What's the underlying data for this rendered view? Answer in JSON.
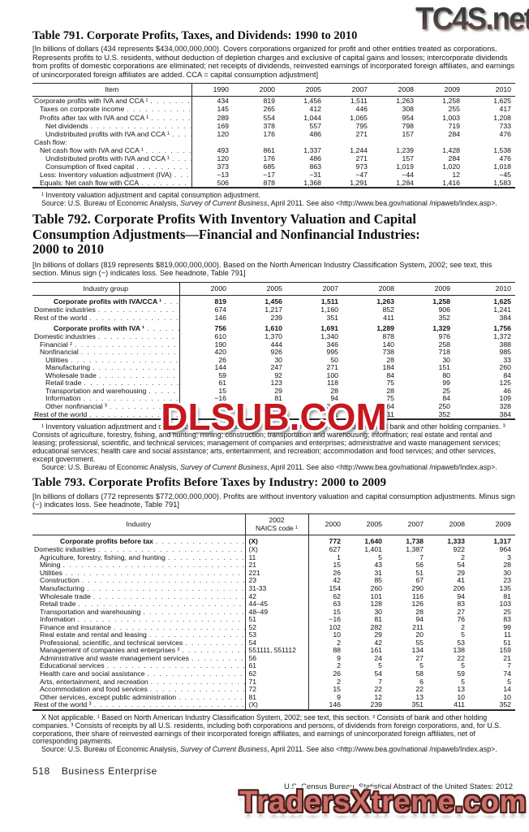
{
  "page": {
    "watermark_top": "TC4S.net",
    "watermark_middle": "DLSUB.COM",
    "watermark_bottom": "TradersXtreme.com",
    "footer_page_number": "518",
    "footer_section": "Business Enterprise",
    "footer_imprint": "U.S. Census Bureau, Statistical Abstract of the United States: 2012"
  },
  "colors": {
    "dlsub-red": "#c5191f",
    "traders-fill": "#cc6d68",
    "traders-outline": "#47201c",
    "tc4s-dark": "#3d3d3f",
    "tc4s-rust": "#96604f"
  },
  "table791": {
    "title": "Table 791. Corporate Profits, Taxes, and Dividends: 1990 to 2010",
    "headnote": "[In billions of dollars (434 represents $434,000,000,000). Covers corporations organized for profit and other entities treated as corporations. Represents profits to U.S. residents, without deduction of depletion charges and exclusive of capital gains and losses; intercorporate dividends from profits of domestic corporations are eliminated; net receipts of dividends, reinvested earnings of incorporated foreign affiliates, and earnings of unincorporated foreign affiliates are added. CCA = capital consumption adjustment]",
    "columns": [
      "Item",
      "1990",
      "2000",
      "2005",
      "2007",
      "2008",
      "2009",
      "2010"
    ],
    "rows": [
      {
        "label": "Corporate profits with IVA and CCA ¹",
        "indent": 0,
        "values": [
          "434",
          "819",
          "1,456",
          "1,511",
          "1,263",
          "1,258",
          "1,625"
        ]
      },
      {
        "label": "Taxes on corporate income",
        "indent": 1,
        "values": [
          "145",
          "265",
          "412",
          "446",
          "308",
          "255",
          "417"
        ]
      },
      {
        "label": "Profits after tax with IVA and CCA ¹",
        "indent": 1,
        "values": [
          "289",
          "554",
          "1,044",
          "1,065",
          "954",
          "1,003",
          "1,208"
        ]
      },
      {
        "label": "Net dividends",
        "indent": 2,
        "values": [
          "169",
          "378",
          "557",
          "795",
          "798",
          "719",
          "733"
        ]
      },
      {
        "label": "Undistributed profits with IVA and CCA ¹",
        "indent": 2,
        "values": [
          "120",
          "176",
          "486",
          "271",
          "157",
          "284",
          "476"
        ]
      },
      {
        "label": "Cash flow:",
        "indent": 0,
        "leaders": false,
        "values": []
      },
      {
        "label": "Net cash flow with IVA and CCA ¹",
        "indent": 1,
        "values": [
          "493",
          "861",
          "1,337",
          "1,244",
          "1,239",
          "1,428",
          "1,538"
        ]
      },
      {
        "label": "Undistributed profits with IVA and CCA ¹",
        "indent": 2,
        "values": [
          "120",
          "176",
          "486",
          "271",
          "157",
          "284",
          "476"
        ]
      },
      {
        "label": "Consumption of fixed capital",
        "indent": 2,
        "values": [
          "373",
          "685",
          "863",
          "973",
          "1,019",
          "1,020",
          "1,018"
        ]
      },
      {
        "label": "Less: Inventory valuation adjustment (IVA)",
        "indent": 1,
        "values": [
          "−13",
          "−17",
          "−31",
          "−47",
          "−44",
          "12",
          "−45"
        ]
      },
      {
        "label": "Equals: Net cash flow with CCA",
        "indent": 1,
        "values": [
          "506",
          "878",
          "1,368",
          "1,291",
          "1,284",
          "1,416",
          "1,583"
        ]
      }
    ],
    "footnote": "¹ Inventory valuation adjustment and capital consumption adjustment.",
    "source": {
      "pre": "Source: U.S. Bureau of Economic Analysis, ",
      "journal": "Survey of Current Business",
      "post": ", April 2011. See also <http://www.bea.gov/national /nipaweb/Index.asp>."
    }
  },
  "table792": {
    "title_line1": "Table 792. Corporate Profits With Inventory Valuation and Capital",
    "title_line2": "Consumption Adjustments—Financial and Nonfinancial Industries:",
    "title_line3": "2000 to 2010",
    "headnote": "[In billions of dollars (819 represents $819,000,000,000). Based on the North American Industry Classification System, 2002; see text, this section. Minus sign (−) indicates loss. See headnote, Table 791]",
    "columns": [
      "Industry group",
      "2000",
      "2005",
      "2007",
      "2008",
      "2009",
      "2010"
    ],
    "rows": [
      {
        "label": "Corporate profits with IVA/CCA ¹",
        "indent": 3,
        "bold": true,
        "values": [
          "819",
          "1,456",
          "1,511",
          "1,263",
          "1,258",
          "1,625"
        ]
      },
      {
        "label": "Domestic industries",
        "indent": 0,
        "values": [
          "674",
          "1,217",
          "1,160",
          "852",
          "906",
          "1,241"
        ]
      },
      {
        "label": "Rest of the world",
        "indent": 0,
        "values": [
          "146",
          "239",
          "351",
          "411",
          "352",
          "384"
        ]
      },
      {
        "label": "Corporate profits with IVA ¹",
        "indent": 3,
        "bold": true,
        "values": [
          "756",
          "1,610",
          "1,691",
          "1,289",
          "1,329",
          "1,756"
        ]
      },
      {
        "label": "Domestic industries",
        "indent": 0,
        "values": [
          "610",
          "1,370",
          "1,340",
          "878",
          "976",
          "1,372"
        ]
      },
      {
        "label": "Financial ²",
        "indent": 1,
        "values": [
          "190",
          "444",
          "346",
          "140",
          "258",
          "388"
        ]
      },
      {
        "label": "Nonfinancial",
        "indent": 1,
        "values": [
          "420",
          "926",
          "995",
          "738",
          "718",
          "985"
        ]
      },
      {
        "label": "Utilities",
        "indent": 2,
        "values": [
          "26",
          "30",
          "50",
          "28",
          "30",
          "33"
        ]
      },
      {
        "label": "Manufacturing",
        "indent": 2,
        "values": [
          "144",
          "247",
          "271",
          "184",
          "151",
          "260"
        ]
      },
      {
        "label": "Wholesale trade",
        "indent": 2,
        "values": [
          "59",
          "92",
          "100",
          "84",
          "80",
          "84"
        ]
      },
      {
        "label": "Retail trade",
        "indent": 2,
        "values": [
          "61",
          "123",
          "118",
          "75",
          "99",
          "125"
        ]
      },
      {
        "label": "Transportation and warehousing",
        "indent": 2,
        "values": [
          "15",
          "29",
          "28",
          "28",
          "25",
          "46"
        ]
      },
      {
        "label": "Information",
        "indent": 2,
        "values": [
          "−16",
          "81",
          "94",
          "75",
          "84",
          "109"
        ]
      },
      {
        "label": "Other nonfinancial ³",
        "indent": 2,
        "values": [
          "132",
          "324",
          "334",
          "264",
          "250",
          "328"
        ]
      },
      {
        "label": "Rest of the world",
        "indent": 0,
        "values": [
          "146",
          "239",
          "351",
          "411",
          "352",
          "384"
        ]
      }
    ],
    "footnote": "¹ Inventory valuation adjustment and capital consumption adjustment. ² Consists of finance and insurance and bank and other holding companies. ³ Consists of agriculture, forestry, fishing, and hunting; mining; construction; transportation and warehousing; information; real estate and rental and leasing; professional, scientific, and technical services; management of companies and enterprises; administrative and waste management services; educational services; health care and social assistance; arts, entertainment, and recreation; accommodation and food services; and other services, except government.",
    "source": {
      "pre": "Source: U.S. Bureau of Economic Analysis, ",
      "journal": "Survey of Current Business",
      "post": ", April 2011. See also <http://www.bea.gov/national /nipaweb/Index.asp>."
    }
  },
  "table793": {
    "title": "Table 793. Corporate Profits Before Taxes by Industry: 2000 to 2009",
    "headnote": "[In billions of dollars (772 represents $772,000,000,000). Profits are without inventory valuation and capital consumption adjustments. Minus sign (−) indicates loss. See headnote, Table 791]",
    "columns": [
      "Industry",
      "2002\nNAICS code ¹",
      "2000",
      "2005",
      "2007",
      "2008",
      "2009"
    ],
    "rows": [
      {
        "label": "Corporate profits before tax",
        "indent": 4,
        "bold": true,
        "naics": "(X)",
        "values": [
          "772",
          "1,640",
          "1,738",
          "1,333",
          "1,317"
        ]
      },
      {
        "label": "Domestic industries",
        "indent": 0,
        "naics": "(X)",
        "values": [
          "627",
          "1,401",
          "1,387",
          "922",
          "964"
        ]
      },
      {
        "label": "Agriculture, forestry, fishing, and hunting",
        "indent": 1,
        "naics": "11",
        "values": [
          "1",
          "5",
          "7",
          "2",
          "3"
        ]
      },
      {
        "label": "Mining",
        "indent": 1,
        "naics": "21",
        "values": [
          "15",
          "43",
          "56",
          "54",
          "28"
        ]
      },
      {
        "label": "Utilities",
        "indent": 1,
        "naics": "221",
        "values": [
          "26",
          "31",
          "51",
          "29",
          "30"
        ]
      },
      {
        "label": "Construction",
        "indent": 1,
        "naics": "23",
        "values": [
          "42",
          "85",
          "67",
          "41",
          "23"
        ]
      },
      {
        "label": "Manufacturing",
        "indent": 1,
        "naics": "31-33",
        "values": [
          "154",
          "260",
          "290",
          "206",
          "135"
        ]
      },
      {
        "label": "Wholesale trade",
        "indent": 1,
        "naics": "42",
        "values": [
          "62",
          "101",
          "116",
          "94",
          "81"
        ]
      },
      {
        "label": "Retail trade",
        "indent": 1,
        "naics": "44–45",
        "values": [
          "63",
          "128",
          "126",
          "83",
          "103"
        ]
      },
      {
        "label": "Transportation and warehousing",
        "indent": 1,
        "naics": "48–49",
        "values": [
          "15",
          "30",
          "28",
          "27",
          "25"
        ]
      },
      {
        "label": "Information",
        "indent": 1,
        "naics": "51",
        "values": [
          "−16",
          "81",
          "94",
          "76",
          "83"
        ]
      },
      {
        "label": "Finance and insurance",
        "indent": 1,
        "naics": "52",
        "values": [
          "102",
          "282",
          "211",
          "2",
          "99"
        ]
      },
      {
        "label": "Real estate and rental and leasing",
        "indent": 1,
        "naics": "53",
        "values": [
          "10",
          "29",
          "20",
          "5",
          "11"
        ]
      },
      {
        "label": "Professional, scientific, and technical services",
        "indent": 1,
        "naics": "54",
        "values": [
          "2",
          "42",
          "55",
          "53",
          "51"
        ]
      },
      {
        "label": "Management of companies and enterprises ²",
        "indent": 1,
        "naics": "551111, 551112",
        "values": [
          "88",
          "161",
          "134",
          "138",
          "159"
        ]
      },
      {
        "label": "Administrative and waste management services",
        "indent": 1,
        "naics": "56",
        "values": [
          "9",
          "24",
          "27",
          "22",
          "21"
        ]
      },
      {
        "label": "Educational services",
        "indent": 1,
        "naics": "61",
        "values": [
          "2",
          "5",
          "5",
          "5",
          "7"
        ]
      },
      {
        "label": "Health care and social assistance",
        "indent": 1,
        "naics": "62",
        "values": [
          "26",
          "54",
          "58",
          "59",
          "74"
        ]
      },
      {
        "label": "Arts, entertainment, and recreation",
        "indent": 1,
        "naics": "71",
        "values": [
          "2",
          "7",
          "6",
          "5",
          "5"
        ]
      },
      {
        "label": "Accommodation and food services",
        "indent": 1,
        "naics": "72",
        "values": [
          "15",
          "22",
          "22",
          "13",
          "14"
        ]
      },
      {
        "label": "Other services, except public administration",
        "indent": 1,
        "naics": "81",
        "values": [
          "9",
          "12",
          "13",
          "10",
          "10"
        ]
      },
      {
        "label": "Rest of the world ³",
        "indent": 0,
        "naics": "(X)",
        "values": [
          "146",
          "239",
          "351",
          "411",
          "352"
        ]
      }
    ],
    "footnote": "X Not applicable. ¹ Based on North American Industry Classification System, 2002; see text, this section. ² Consists of bank and other holding companies. ³ Consists of receipts by all U.S. residents, including both corporations and persons, of dividends from foreign corporations, and, for U.S. corporations, their share of reinvested earnings of their incorporated foreign affiliates, and earnings of unincorporated foreign affiliates, net of corresponding payments.",
    "source": {
      "pre": "Source: U.S. Bureau of Economic Analysis, ",
      "journal": "Survey of Current Business",
      "post": ", April 2011. See also <http://www.bea.gov/national /nipaweb/Index.asp>."
    }
  }
}
